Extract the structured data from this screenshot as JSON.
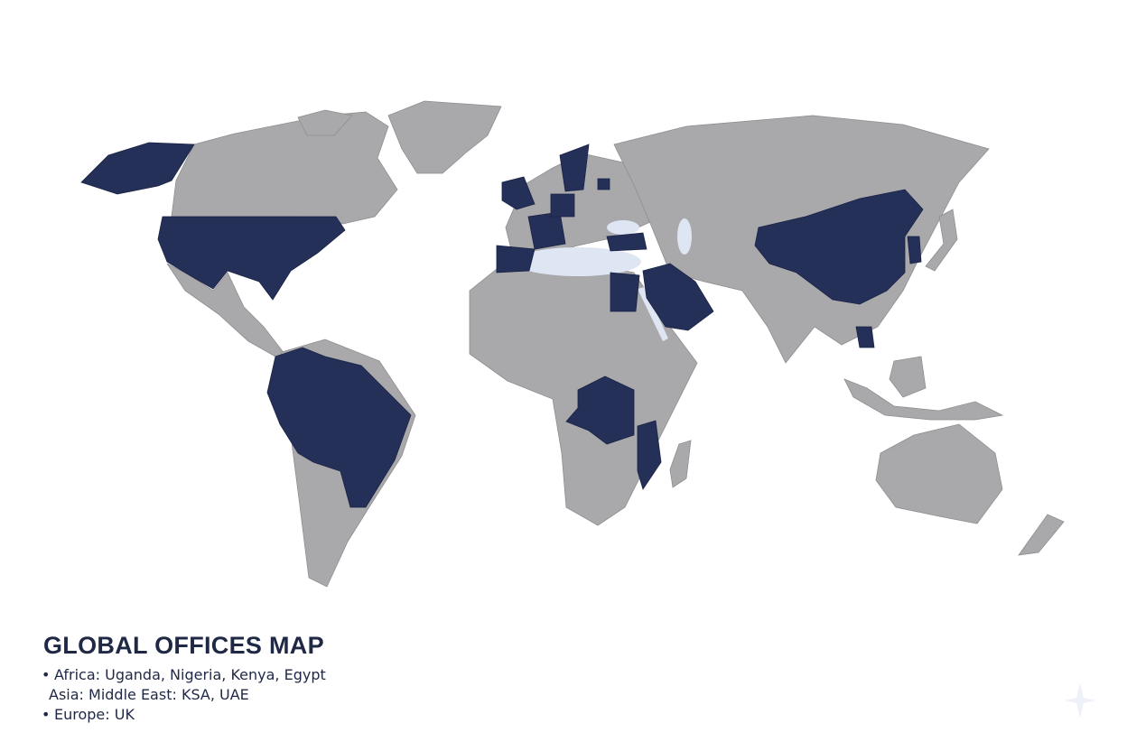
{
  "map": {
    "colors": {
      "background": "#ffffff",
      "land": "#a9a9ab",
      "highlighted": "#253058",
      "inland_water": "#dfe6f3",
      "text": "#1f2845"
    }
  },
  "legend": {
    "title": "GLOBAL OFFICES MAP",
    "items": [
      {
        "bullet": "•",
        "text": "Africa: Uganda, Nigeria, Kenya, Egypt"
      },
      {
        "bullet": "",
        "text": "Asia: Middle East: KSA, UAE"
      },
      {
        "bullet": "•",
        "text": "Europe: UK"
      }
    ]
  },
  "watermark": {
    "icon": "sparkle-icon"
  }
}
